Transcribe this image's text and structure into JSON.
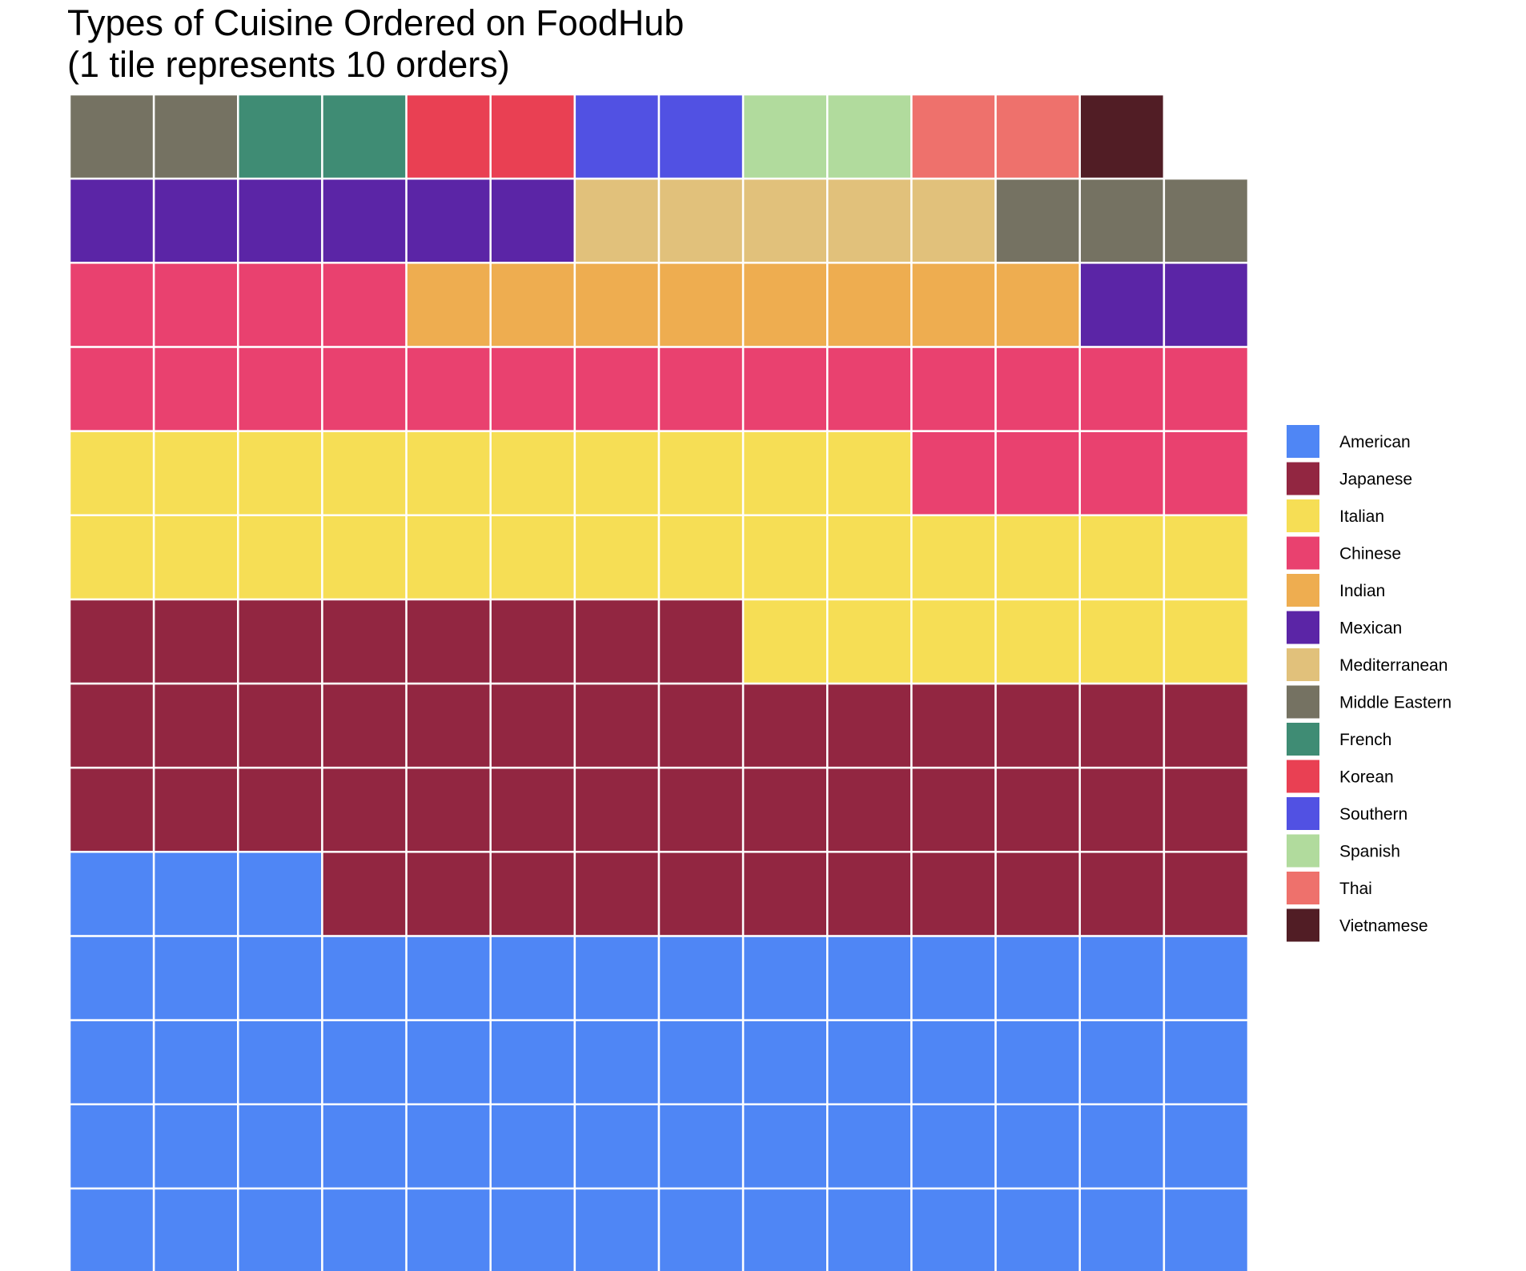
{
  "chart_data": {
    "type": "waffle",
    "title_lines": [
      "Types of Cuisine Ordered on FoodHub",
      "(1 tile represents 10 orders)"
    ],
    "grid": false,
    "columns": 14,
    "fill_order": "bottom-to-top, left-to-right",
    "legend_position": "right",
    "series": [
      {
        "name": "American",
        "tiles": 59,
        "color": "#4F86F5"
      },
      {
        "name": "Japanese",
        "tiles": 47,
        "color": "#922641"
      },
      {
        "name": "Italian",
        "tiles": 30,
        "color": "#F6DE55"
      },
      {
        "name": "Chinese",
        "tiles": 22,
        "color": "#E9416F"
      },
      {
        "name": "Indian",
        "tiles": 8,
        "color": "#EEAD50"
      },
      {
        "name": "Mexican",
        "tiles": 8,
        "color": "#5B25A6"
      },
      {
        "name": "Mediterranean",
        "tiles": 5,
        "color": "#E1C17B"
      },
      {
        "name": "Middle Eastern",
        "tiles": 5,
        "color": "#757262"
      },
      {
        "name": "French",
        "tiles": 2,
        "color": "#3F8C74"
      },
      {
        "name": "Korean",
        "tiles": 2,
        "color": "#E94053"
      },
      {
        "name": "Southern",
        "tiles": 2,
        "color": "#5151E3"
      },
      {
        "name": "Spanish",
        "tiles": 2,
        "color": "#B1DB9D"
      },
      {
        "name": "Thai",
        "tiles": 2,
        "color": "#EE716C"
      },
      {
        "name": "Vietnamese",
        "tiles": 1,
        "color": "#511D25"
      }
    ]
  }
}
